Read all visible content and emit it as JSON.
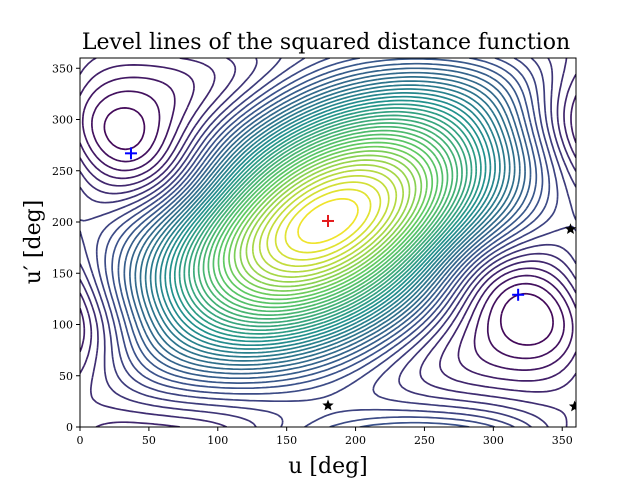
{
  "chart_data": {
    "type": "contour",
    "title": "Level lines of the squared distance function",
    "xlabel": "u [deg]",
    "ylabel": "u′ [deg]",
    "xlim": [
      0,
      360
    ],
    "ylim": [
      0,
      360
    ],
    "xticks": [
      0,
      50,
      100,
      150,
      200,
      250,
      300,
      350
    ],
    "yticks": [
      0,
      50,
      100,
      150,
      200,
      250,
      300,
      350
    ],
    "grid": false,
    "colormap": [
      "#440154",
      "#3b528b",
      "#21918c",
      "#5ec962",
      "#fde725"
    ],
    "maximum_point": {
      "u": 180,
      "u_prime": 201,
      "marker": "+",
      "color": "#e41a1c"
    },
    "minimum_points": [
      {
        "u": 37,
        "u_prime": 267,
        "marker": "+",
        "color": "#0000ff"
      },
      {
        "u": 318,
        "u_prime": 129,
        "marker": "+",
        "color": "#0000ff"
      }
    ],
    "saddle_points": [
      {
        "u": 180,
        "u_prime": 21,
        "marker": "star",
        "color": "#000000"
      },
      {
        "u": 356,
        "u_prime": 193,
        "marker": "star",
        "color": "#000000"
      },
      {
        "u": 359,
        "u_prime": 20,
        "marker": "star",
        "color": "#000000"
      }
    ]
  }
}
